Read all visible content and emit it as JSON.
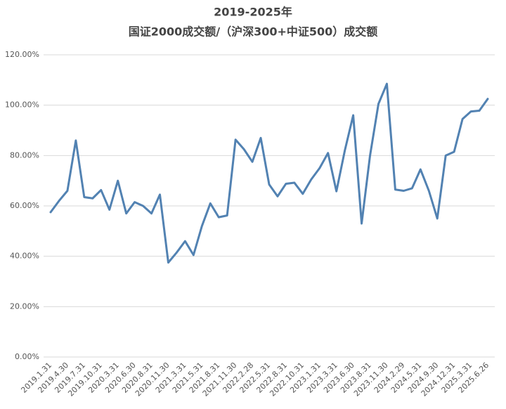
{
  "chart_data": {
    "type": "line",
    "title": "2019-2025年",
    "subtitle": "国证2000成交额/（沪深300+中证500）成交额",
    "categories": [
      "2019.1.31",
      null,
      "2019.4.30",
      null,
      "2019.7.31",
      null,
      "2019.10.31",
      null,
      "2020.3.31",
      null,
      "2020.6.30",
      null,
      "2020.8.31",
      null,
      "2020.11.30",
      null,
      "2021.3.31",
      null,
      "2021.5.31",
      null,
      "2021.8.31",
      null,
      "2021.11.30",
      null,
      "2022.2.28",
      null,
      "2022.5.31",
      null,
      "2022.8.31",
      null,
      "2022.10.31",
      null,
      "2023.1.31",
      null,
      "2023.3.31",
      null,
      "2023.6.30",
      null,
      "2023.8.31",
      null,
      "2023.11.30",
      null,
      "2024.2.29",
      null,
      "2024.5.31",
      null,
      "2024.9.30",
      null,
      "2024.12.31",
      null,
      "2025.3.31",
      null,
      "2025.6.26"
    ],
    "series": [
      {
        "color": "#5282b2",
        "values": [
          57.5,
          62,
          66,
          86,
          63.5,
          63,
          66.3,
          58.5,
          70,
          57,
          61.5,
          60,
          57,
          64.5,
          37.5,
          41.5,
          46,
          40.5,
          52,
          61,
          55.5,
          56.2,
          86.3,
          82.5,
          77.5,
          87,
          68.5,
          63.8,
          68.8,
          69.2,
          64.8,
          70.5,
          75,
          81,
          65.8,
          82,
          96,
          53,
          80,
          100.5,
          108.5,
          66.5,
          66,
          67,
          74.5,
          66,
          55,
          80,
          81.5,
          94.5,
          97.5,
          97.8,
          102.5
        ]
      }
    ],
    "ylim": [
      0,
      120
    ],
    "yticks": [
      {
        "value": 0,
        "label": "0.00%"
      },
      {
        "value": 20,
        "label": "20.00%"
      },
      {
        "value": 40,
        "label": "40.00%"
      },
      {
        "value": 60,
        "label": "60.00%"
      },
      {
        "value": 80,
        "label": "80.00%"
      },
      {
        "value": 100,
        "label": "100.00%"
      },
      {
        "value": 120,
        "label": "120.00%"
      }
    ],
    "grid": true
  }
}
